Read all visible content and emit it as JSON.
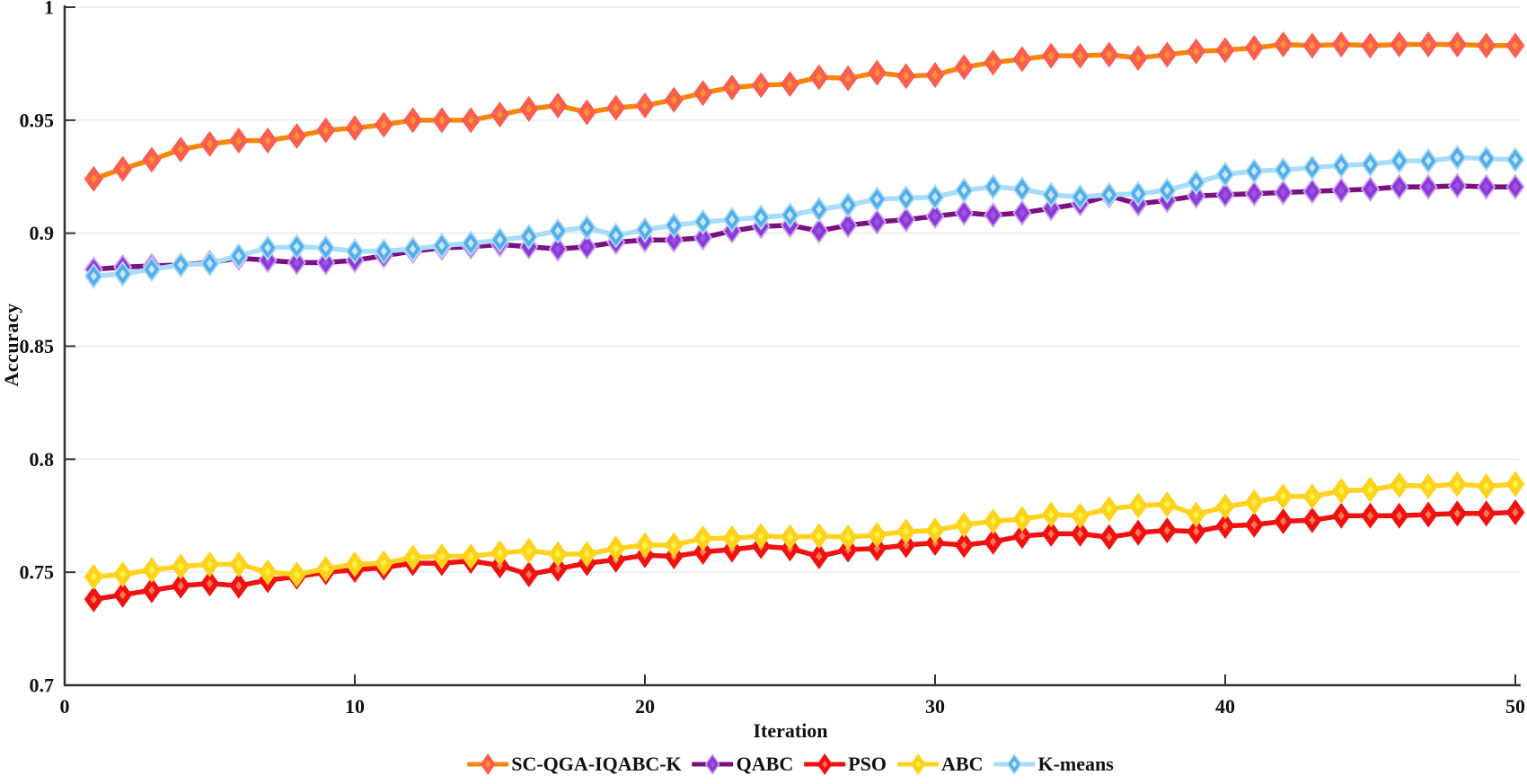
{
  "figure": {
    "background": "#ffffff",
    "text_color": "#111111"
  },
  "chart_data": {
    "type": "line",
    "title": "",
    "xlabel": "Iteration",
    "ylabel": "Accuracy",
    "xlim": [
      0,
      50
    ],
    "ylim": [
      0.7,
      1.0
    ],
    "grid": "horizontal",
    "grid_color": "#ebebeb",
    "axis_color": "#333333",
    "tick_label_color": "#111111",
    "legend_position": "bottom-center",
    "x_ticks": {
      "values": [
        0,
        10,
        20,
        30,
        40,
        50
      ],
      "labels": [
        "0",
        "10",
        "20",
        "30",
        "40",
        "50"
      ]
    },
    "y_ticks": {
      "values": [
        0.7,
        0.75,
        0.8,
        0.85,
        0.9,
        0.95,
        1.0
      ],
      "labels": [
        "0.7",
        "0.75",
        "0.8",
        "0.85",
        "0.9",
        "0.95",
        "1"
      ]
    },
    "x": [
      1,
      2,
      3,
      4,
      5,
      6,
      7,
      8,
      9,
      10,
      11,
      12,
      13,
      14,
      15,
      16,
      17,
      18,
      19,
      20,
      21,
      22,
      23,
      24,
      25,
      26,
      27,
      28,
      29,
      30,
      31,
      32,
      33,
      34,
      35,
      36,
      37,
      38,
      39,
      40,
      41,
      42,
      43,
      44,
      45,
      46,
      47,
      48,
      49,
      50
    ],
    "series": [
      {
        "name": "SC-QGA-IQABC-K",
        "color": "#F8860B",
        "marker": {
          "edge": "#F95F4E",
          "fill": "#F95F4E",
          "center": "#FC9231"
        },
        "values": [
          0.924,
          0.9285,
          0.9325,
          0.937,
          0.9395,
          0.941,
          0.941,
          0.943,
          0.9455,
          0.9465,
          0.948,
          0.95,
          0.95,
          0.95,
          0.9525,
          0.955,
          0.9565,
          0.9535,
          0.9555,
          0.9565,
          0.959,
          0.962,
          0.9645,
          0.9655,
          0.966,
          0.969,
          0.9685,
          0.971,
          0.9695,
          0.97,
          0.9735,
          0.9755,
          0.977,
          0.9785,
          0.9785,
          0.979,
          0.9775,
          0.979,
          0.9805,
          0.981,
          0.982,
          0.9835,
          0.983,
          0.9835,
          0.983,
          0.9835,
          0.9835,
          0.9835,
          0.983,
          0.983
        ]
      },
      {
        "name": "QABC",
        "color": "#7A0F7F",
        "marker": {
          "edge": "#CBA2EC",
          "fill": "#8C38D9",
          "center": "#9A55DE"
        },
        "values": [
          0.884,
          0.885,
          0.8855,
          0.886,
          0.887,
          0.889,
          0.888,
          0.887,
          0.887,
          0.888,
          0.89,
          0.892,
          0.8935,
          0.894,
          0.895,
          0.894,
          0.893,
          0.894,
          0.896,
          0.897,
          0.897,
          0.898,
          0.901,
          0.903,
          0.9035,
          0.901,
          0.9035,
          0.905,
          0.906,
          0.9075,
          0.909,
          0.908,
          0.909,
          0.911,
          0.913,
          0.9165,
          0.913,
          0.9145,
          0.9165,
          0.917,
          0.9175,
          0.918,
          0.9185,
          0.919,
          0.9195,
          0.9205,
          0.9205,
          0.921,
          0.9205,
          0.9205
        ]
      },
      {
        "name": "PSO",
        "color": "#F01111",
        "marker": {
          "edge": "#F01111",
          "fill": "#F01111",
          "center": "#F57853"
        },
        "values": [
          0.738,
          0.74,
          0.742,
          0.744,
          0.745,
          0.744,
          0.7465,
          0.748,
          0.75,
          0.751,
          0.752,
          0.754,
          0.754,
          0.755,
          0.753,
          0.749,
          0.7515,
          0.754,
          0.7555,
          0.7575,
          0.757,
          0.759,
          0.76,
          0.7615,
          0.7605,
          0.757,
          0.76,
          0.7605,
          0.762,
          0.763,
          0.762,
          0.7635,
          0.766,
          0.767,
          0.767,
          0.7655,
          0.7675,
          0.7685,
          0.768,
          0.7705,
          0.771,
          0.7725,
          0.773,
          0.775,
          0.775,
          0.775,
          0.7755,
          0.776,
          0.776,
          0.7765
        ]
      },
      {
        "name": "ABC",
        "color": "#FFD21E",
        "marker": {
          "edge": "#FFD21E",
          "fill": "#FFD21E",
          "center": "#FBF33D"
        },
        "values": [
          0.748,
          0.749,
          0.751,
          0.7525,
          0.7535,
          0.7535,
          0.75,
          0.749,
          0.7515,
          0.7535,
          0.754,
          0.7565,
          0.757,
          0.757,
          0.7585,
          0.7595,
          0.758,
          0.758,
          0.7605,
          0.762,
          0.762,
          0.765,
          0.765,
          0.766,
          0.7655,
          0.766,
          0.7655,
          0.7665,
          0.768,
          0.7685,
          0.771,
          0.7725,
          0.7735,
          0.7755,
          0.775,
          0.778,
          0.7795,
          0.78,
          0.7755,
          0.779,
          0.781,
          0.7835,
          0.7835,
          0.786,
          0.7865,
          0.7885,
          0.788,
          0.789,
          0.788,
          0.789
        ]
      },
      {
        "name": "K-means",
        "color": "#A7DDF8",
        "marker": {
          "edge": "#A7DDF8",
          "fill": "#55ACE9",
          "center": "#C3E9FB"
        },
        "values": [
          0.881,
          0.882,
          0.884,
          0.886,
          0.8865,
          0.89,
          0.8935,
          0.894,
          0.8935,
          0.892,
          0.892,
          0.893,
          0.8945,
          0.8955,
          0.897,
          0.8985,
          0.901,
          0.9025,
          0.899,
          0.9015,
          0.9035,
          0.905,
          0.906,
          0.907,
          0.908,
          0.9105,
          0.9125,
          0.915,
          0.9155,
          0.916,
          0.919,
          0.9205,
          0.9195,
          0.917,
          0.916,
          0.917,
          0.9175,
          0.919,
          0.9225,
          0.926,
          0.9275,
          0.928,
          0.929,
          0.93,
          0.9305,
          0.932,
          0.932,
          0.9335,
          0.933,
          0.9325
        ]
      }
    ]
  }
}
